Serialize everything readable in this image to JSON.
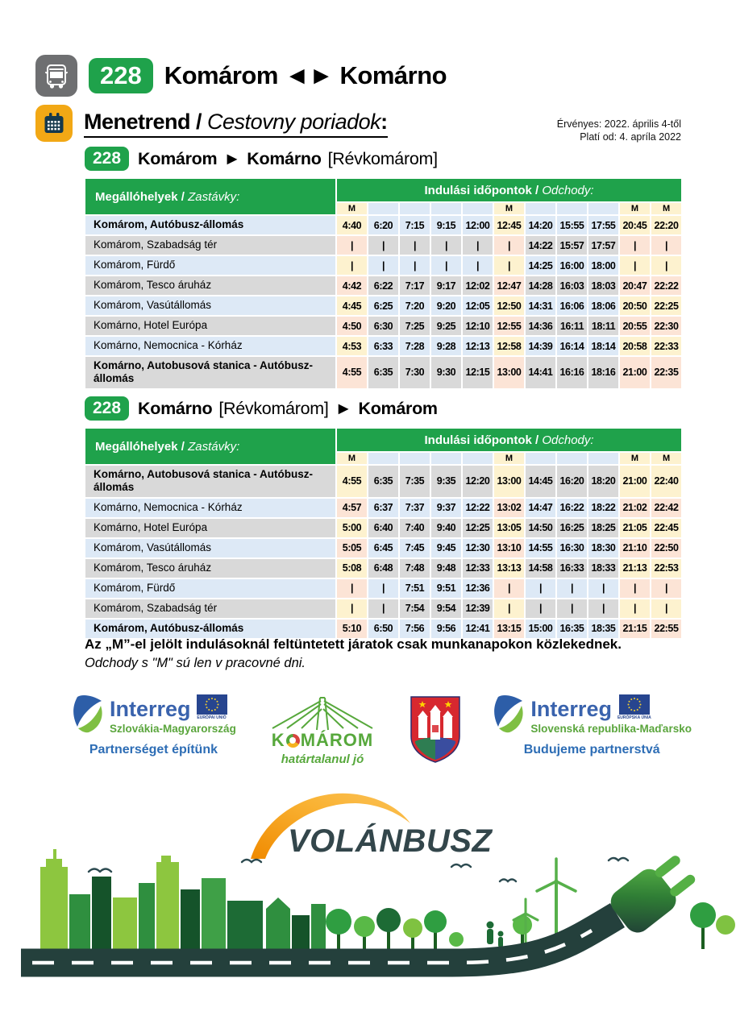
{
  "header": {
    "route_badge": "228",
    "route_title": "Komárom ◄► Komárno",
    "schedule_title_hu": "Menetrend",
    "schedule_title_sep": " / ",
    "schedule_title_sk": "Cestovny poriadok",
    "schedule_title_colon": ":",
    "validity_hu": "Érvényes: 2022. április 4-től",
    "validity_sk": "Platí od: 4. apríla 2022"
  },
  "table_labels": {
    "stops_hu": "Megállóhelyek",
    "stops_sep": " / ",
    "stops_sk": "Zastávky:",
    "times_hu": "Indulási időpontok",
    "times_sep": " / ",
    "times_sk": "Odchody:",
    "workday_marker": "M"
  },
  "tables": [
    {
      "badge": "228",
      "title_parts": [
        {
          "text": "Komárom",
          "bold": true
        },
        {
          "text": "►",
          "bold": true
        },
        {
          "text": "Komárno",
          "bold": true
        },
        {
          "text": "[Révkomárom]",
          "bold": false
        }
      ],
      "m_columns": [
        1,
        6,
        10,
        11
      ],
      "stripe_start": "blue",
      "rows": [
        {
          "stop": "Komárom, Autóbusz-állomás",
          "bold": true,
          "times": [
            "4:40",
            "6:20",
            "7:15",
            "9:15",
            "12:00",
            "12:45",
            "14:20",
            "15:55",
            "17:55",
            "20:45",
            "22:20"
          ]
        },
        {
          "stop": "Komárom, Szabadság tér",
          "bold": false,
          "times": [
            "|",
            "|",
            "|",
            "|",
            "|",
            "|",
            "14:22",
            "15:57",
            "17:57",
            "|",
            "|"
          ]
        },
        {
          "stop": "Komárom, Fürdő",
          "bold": false,
          "times": [
            "|",
            "|",
            "|",
            "|",
            "|",
            "|",
            "14:25",
            "16:00",
            "18:00",
            "|",
            "|"
          ]
        },
        {
          "stop": "Komárom, Tesco áruház",
          "bold": false,
          "times": [
            "4:42",
            "6:22",
            "7:17",
            "9:17",
            "12:02",
            "12:47",
            "14:28",
            "16:03",
            "18:03",
            "20:47",
            "22:22"
          ]
        },
        {
          "stop": "Komárom, Vasútállomás",
          "bold": false,
          "times": [
            "4:45",
            "6:25",
            "7:20",
            "9:20",
            "12:05",
            "12:50",
            "14:31",
            "16:06",
            "18:06",
            "20:50",
            "22:25"
          ]
        },
        {
          "stop": "Komárno, Hotel Európa",
          "bold": false,
          "times": [
            "4:50",
            "6:30",
            "7:25",
            "9:25",
            "12:10",
            "12:55",
            "14:36",
            "16:11",
            "18:11",
            "20:55",
            "22:30"
          ]
        },
        {
          "stop": "Komárno, Nemocnica - Kórház",
          "bold": false,
          "times": [
            "4:53",
            "6:33",
            "7:28",
            "9:28",
            "12:13",
            "12:58",
            "14:39",
            "16:14",
            "18:14",
            "20:58",
            "22:33"
          ]
        },
        {
          "stop": "Komárno, Autobusová stanica - Autóbusz-állomás",
          "bold": true,
          "times": [
            "4:55",
            "6:35",
            "7:30",
            "9:30",
            "12:15",
            "13:00",
            "14:41",
            "16:16",
            "18:16",
            "21:00",
            "22:35"
          ]
        }
      ]
    },
    {
      "badge": "228",
      "title_parts": [
        {
          "text": "Komárno",
          "bold": true
        },
        {
          "text": "[Révkomárom]",
          "bold": false
        },
        {
          "text": "►",
          "bold": true
        },
        {
          "text": "Komárom",
          "bold": true
        }
      ],
      "m_columns": [
        1,
        6,
        10,
        11
      ],
      "stripe_start": "gray",
      "rows": [
        {
          "stop": "Komárno, Autobusová stanica - Autóbusz-állomás",
          "bold": true,
          "times": [
            "4:55",
            "6:35",
            "7:35",
            "9:35",
            "12:20",
            "13:00",
            "14:45",
            "16:20",
            "18:20",
            "21:00",
            "22:40"
          ]
        },
        {
          "stop": "Komárno, Nemocnica - Kórház",
          "bold": false,
          "times": [
            "4:57",
            "6:37",
            "7:37",
            "9:37",
            "12:22",
            "13:02",
            "14:47",
            "16:22",
            "18:22",
            "21:02",
            "22:42"
          ]
        },
        {
          "stop": "Komárno, Hotel Európa",
          "bold": false,
          "times": [
            "5:00",
            "6:40",
            "7:40",
            "9:40",
            "12:25",
            "13:05",
            "14:50",
            "16:25",
            "18:25",
            "21:05",
            "22:45"
          ]
        },
        {
          "stop": "Komárom, Vasútállomás",
          "bold": false,
          "times": [
            "5:05",
            "6:45",
            "7:45",
            "9:45",
            "12:30",
            "13:10",
            "14:55",
            "16:30",
            "18:30",
            "21:10",
            "22:50"
          ]
        },
        {
          "stop": "Komárom, Tesco áruház",
          "bold": false,
          "times": [
            "5:08",
            "6:48",
            "7:48",
            "9:48",
            "12:33",
            "13:13",
            "14:58",
            "16:33",
            "18:33",
            "21:13",
            "22:53"
          ]
        },
        {
          "stop": "Komárom, Fürdő",
          "bold": false,
          "times": [
            "|",
            "|",
            "7:51",
            "9:51",
            "12:36",
            "|",
            "|",
            "|",
            "|",
            "|",
            "|"
          ]
        },
        {
          "stop": "Komárom, Szabadság tér",
          "bold": false,
          "times": [
            "|",
            "|",
            "7:54",
            "9:54",
            "12:39",
            "|",
            "|",
            "|",
            "|",
            "|",
            "|"
          ]
        },
        {
          "stop": "Komárom, Autóbusz-állomás",
          "bold": true,
          "times": [
            "5:10",
            "6:50",
            "7:56",
            "9:56",
            "12:41",
            "13:15",
            "15:00",
            "16:35",
            "18:35",
            "21:15",
            "22:55"
          ]
        }
      ]
    }
  ],
  "note": {
    "line1": "Az „M”-el jelölt indulásoknál feltüntetett járatok csak munkanapokon közlekednek.",
    "line2": "Odchody s \"M\" sú len v pracovné dni."
  },
  "logos": {
    "interreg_hu": {
      "brand": "Interreg",
      "region": "Szlovákia-Magyarország",
      "eu": "EURÓPAI UNIÓ",
      "tagline": "Partnerséget építünk"
    },
    "komarom": {
      "name": "KOMÁROM",
      "tagline": "határtalanul jó"
    },
    "interreg_sk": {
      "brand": "Interreg",
      "region": "Slovenská republika-Maďarsko",
      "eu": "EURÓPSKA ÚNIA",
      "tagline": "Budujeme partnerstvá"
    },
    "volanbusz": "VOLÁNBUSZ"
  },
  "colors": {
    "green": "#1fa24b",
    "row_blue": "#dde9f6",
    "row_gray": "#d9d9d9",
    "m_cream": "#fdf2cf",
    "m_peach": "#fce4d6",
    "interreg_blue": "#3a63ad",
    "interreg_green": "#5aa53c",
    "volanbusz_teal": "#33464b",
    "volanbusz_orange": "#f5a81c",
    "bus_icon_gray": "#6e6f71",
    "calendar_icon_amber": "#f2a815",
    "road_dark": "#24403c"
  }
}
